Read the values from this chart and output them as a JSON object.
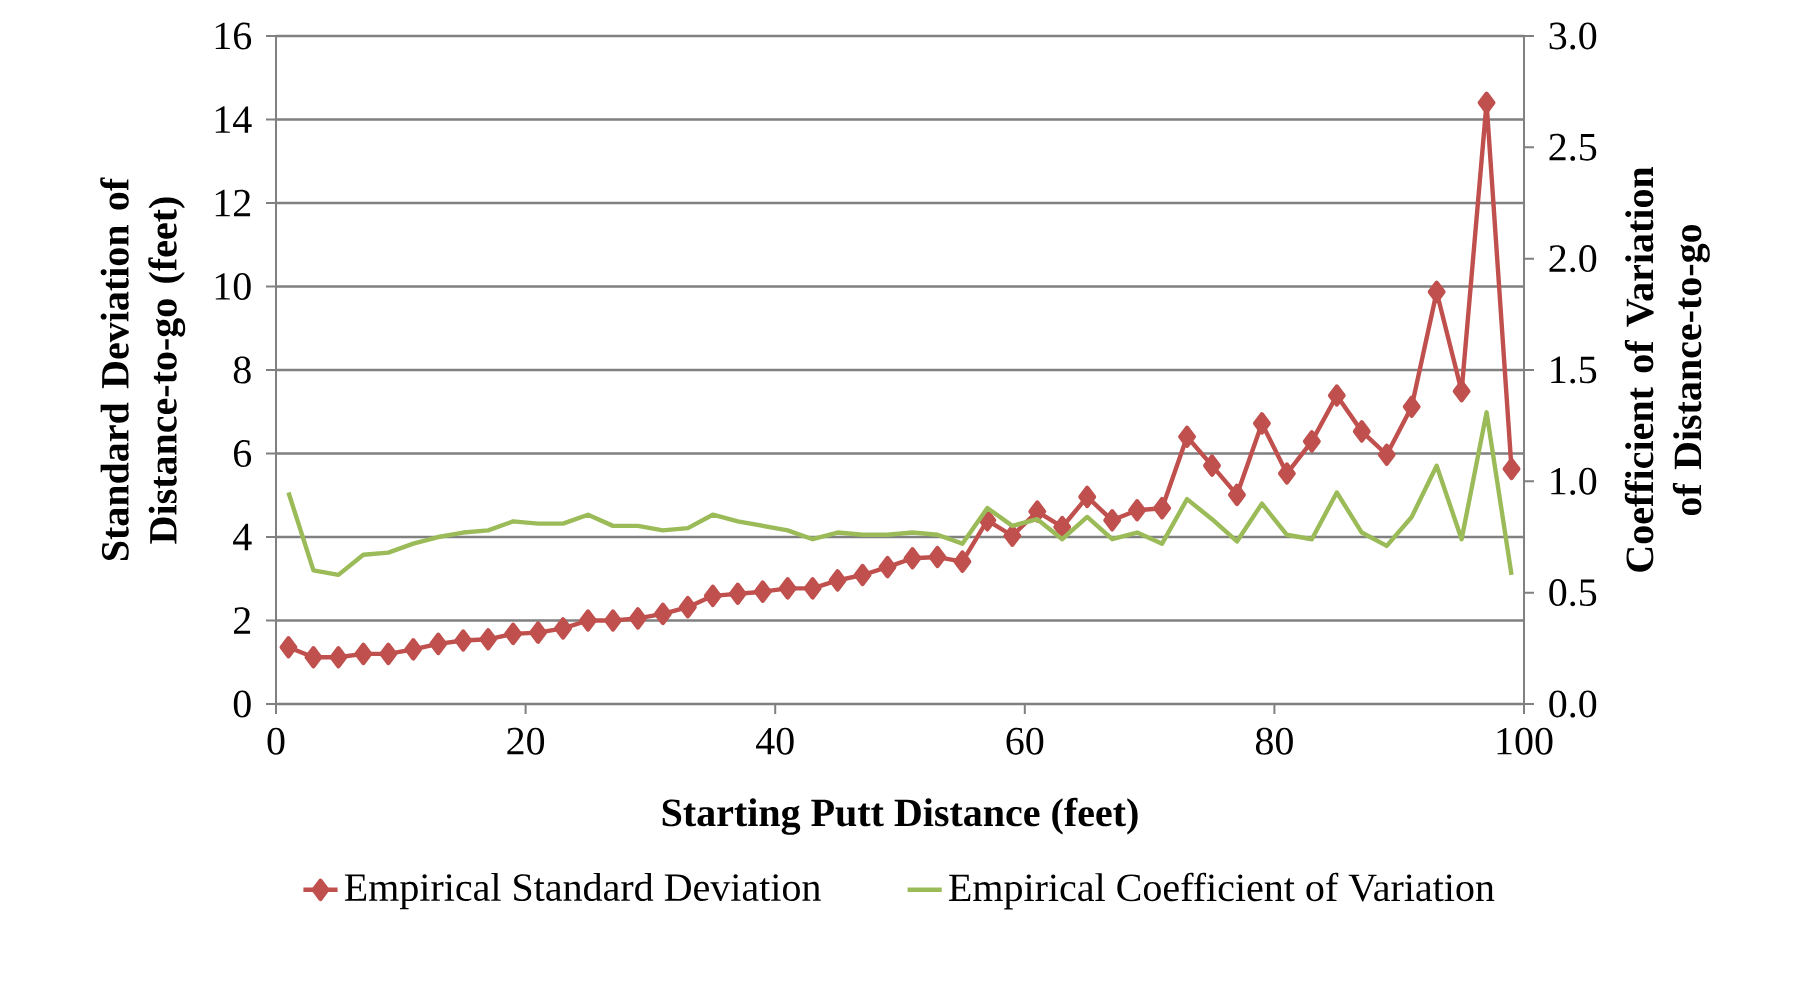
{
  "chart_data": {
    "type": "line",
    "xlabel": "Starting Putt Distance (feet)",
    "ylabel": "Standard Deviation of Distance-to-go (feet)",
    "y2label": "Coefficient of Variation of Distance-to-go",
    "x": [
      1,
      3,
      5,
      7,
      9,
      11,
      13,
      15,
      17,
      19,
      21,
      23,
      25,
      27,
      29,
      31,
      33,
      35,
      37,
      39,
      41,
      43,
      45,
      47,
      49,
      51,
      53,
      55,
      57,
      59,
      61,
      63,
      65,
      67,
      69,
      71,
      73,
      75,
      77,
      79,
      81,
      83,
      85,
      87,
      89,
      91,
      93,
      95,
      97,
      99
    ],
    "series": [
      {
        "name": "Empirical Standard Deviation",
        "color": "#c0504d",
        "marker": "diamond",
        "values": [
          1.36,
          1.12,
          1.12,
          1.2,
          1.2,
          1.31,
          1.44,
          1.52,
          1.55,
          1.68,
          1.71,
          1.81,
          2.0,
          2.0,
          2.05,
          2.16,
          2.32,
          2.59,
          2.64,
          2.69,
          2.77,
          2.77,
          2.96,
          3.09,
          3.28,
          3.49,
          3.52,
          3.41,
          4.4,
          4.03,
          4.61,
          4.24,
          4.96,
          4.4,
          4.64,
          4.69,
          6.4,
          5.71,
          5.01,
          6.72,
          5.52,
          6.29,
          7.39,
          6.53,
          5.97,
          7.12,
          9.87,
          7.49,
          14.4,
          5.63
        ]
      },
      {
        "name": "Empirical Coefficient of Variation",
        "color": "#9bbb59",
        "marker": "none",
        "axis": "y2",
        "values": [
          0.95,
          0.6,
          0.58,
          0.67,
          0.68,
          0.72,
          0.75,
          0.77,
          0.78,
          0.82,
          0.81,
          0.81,
          0.85,
          0.8,
          0.8,
          0.78,
          0.79,
          0.85,
          0.82,
          0.8,
          0.78,
          0.74,
          0.77,
          0.76,
          0.76,
          0.77,
          0.76,
          0.72,
          0.88,
          0.8,
          0.83,
          0.74,
          0.84,
          0.74,
          0.77,
          0.72,
          0.92,
          0.83,
          0.73,
          0.9,
          0.76,
          0.74,
          0.95,
          0.77,
          0.71,
          0.84,
          1.07,
          0.74,
          1.31,
          0.58
        ]
      }
    ],
    "xlim": [
      0,
      100
    ],
    "xticks": [
      0,
      20,
      40,
      60,
      80,
      100
    ],
    "ylim": [
      0,
      16
    ],
    "yticks": [
      0,
      2,
      4,
      6,
      8,
      10,
      12,
      14,
      16
    ],
    "y2lim": [
      0,
      3
    ],
    "y2ticks": [
      {
        "value": 0,
        "label": "0.0"
      },
      0.5,
      {
        "value": 1,
        "label": "1.0"
      },
      1.5,
      {
        "value": 2,
        "label": "2.0"
      },
      2.5,
      {
        "value": 3,
        "label": "3.0"
      }
    ],
    "grid": "y",
    "legend": "bottom",
    "line_style": "solid"
  }
}
